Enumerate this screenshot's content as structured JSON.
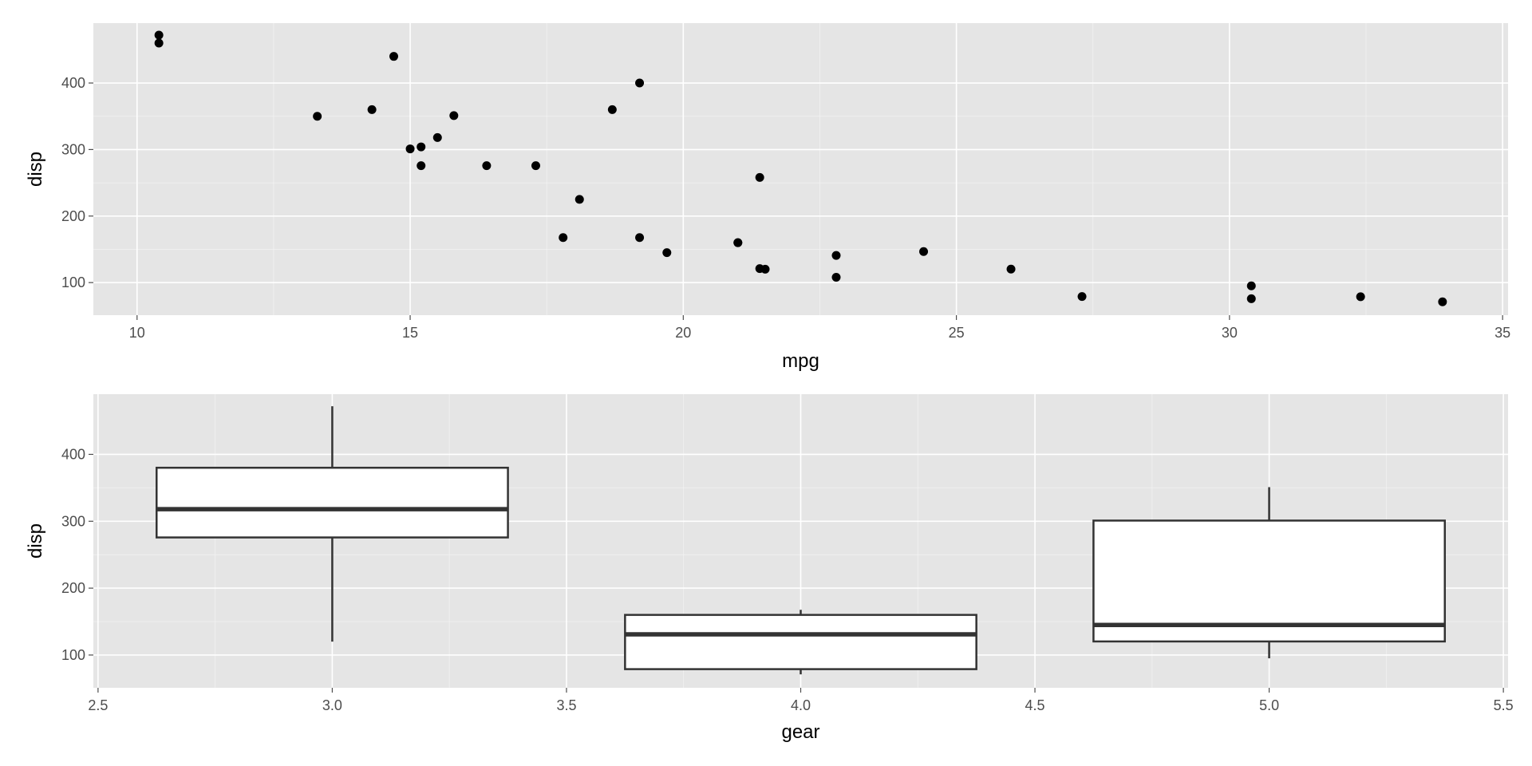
{
  "chart_data": [
    {
      "type": "scatter",
      "xlabel": "mpg",
      "ylabel": "disp",
      "xlim": [
        9.2,
        35.1
      ],
      "ylim": [
        51,
        490
      ],
      "xticks": [
        10,
        15,
        20,
        25,
        30,
        35
      ],
      "yticks": [
        100,
        200,
        300,
        400
      ],
      "grid": true,
      "point_color": "#000000",
      "points": [
        {
          "x": 21.0,
          "y": 160
        },
        {
          "x": 21.0,
          "y": 160
        },
        {
          "x": 22.8,
          "y": 108
        },
        {
          "x": 21.4,
          "y": 258
        },
        {
          "x": 18.7,
          "y": 360
        },
        {
          "x": 18.1,
          "y": 225
        },
        {
          "x": 14.3,
          "y": 360
        },
        {
          "x": 24.4,
          "y": 146.7
        },
        {
          "x": 22.8,
          "y": 140.8
        },
        {
          "x": 19.2,
          "y": 167.6
        },
        {
          "x": 17.8,
          "y": 167.6
        },
        {
          "x": 16.4,
          "y": 275.8
        },
        {
          "x": 17.3,
          "y": 275.8
        },
        {
          "x": 15.2,
          "y": 275.8
        },
        {
          "x": 10.4,
          "y": 472
        },
        {
          "x": 10.4,
          "y": 460
        },
        {
          "x": 14.7,
          "y": 440
        },
        {
          "x": 32.4,
          "y": 78.7
        },
        {
          "x": 30.4,
          "y": 75.7
        },
        {
          "x": 33.9,
          "y": 71.1
        },
        {
          "x": 21.5,
          "y": 120.1
        },
        {
          "x": 15.5,
          "y": 318
        },
        {
          "x": 15.2,
          "y": 304
        },
        {
          "x": 13.3,
          "y": 350
        },
        {
          "x": 19.2,
          "y": 400
        },
        {
          "x": 27.3,
          "y": 79
        },
        {
          "x": 26.0,
          "y": 120.3
        },
        {
          "x": 30.4,
          "y": 95.1
        },
        {
          "x": 15.8,
          "y": 351
        },
        {
          "x": 19.7,
          "y": 145
        },
        {
          "x": 15.0,
          "y": 301
        },
        {
          "x": 21.4,
          "y": 121
        }
      ]
    },
    {
      "type": "boxplot",
      "xlabel": "gear",
      "ylabel": "disp",
      "xlim": [
        2.49,
        5.51
      ],
      "ylim": [
        51,
        490
      ],
      "xticks": [
        "2.5",
        "3.0",
        "3.5",
        "4.0",
        "4.5",
        "5.0",
        "5.5"
      ],
      "yticks": [
        100,
        200,
        300,
        400
      ],
      "grid": true,
      "box_width": 0.75,
      "box_fill": "#ffffff",
      "line_color": "#333333",
      "boxes": [
        {
          "x": 3,
          "whisker_low": 120.1,
          "q1": 275.8,
          "median": 318,
          "q3": 380,
          "whisker_high": 472
        },
        {
          "x": 4,
          "whisker_low": 71.1,
          "q1": 78.9,
          "median": 130.9,
          "q3": 160,
          "whisker_high": 167.6
        },
        {
          "x": 5,
          "whisker_low": 95.1,
          "q1": 120.3,
          "median": 145,
          "q3": 301,
          "whisker_high": 351
        }
      ]
    }
  ]
}
